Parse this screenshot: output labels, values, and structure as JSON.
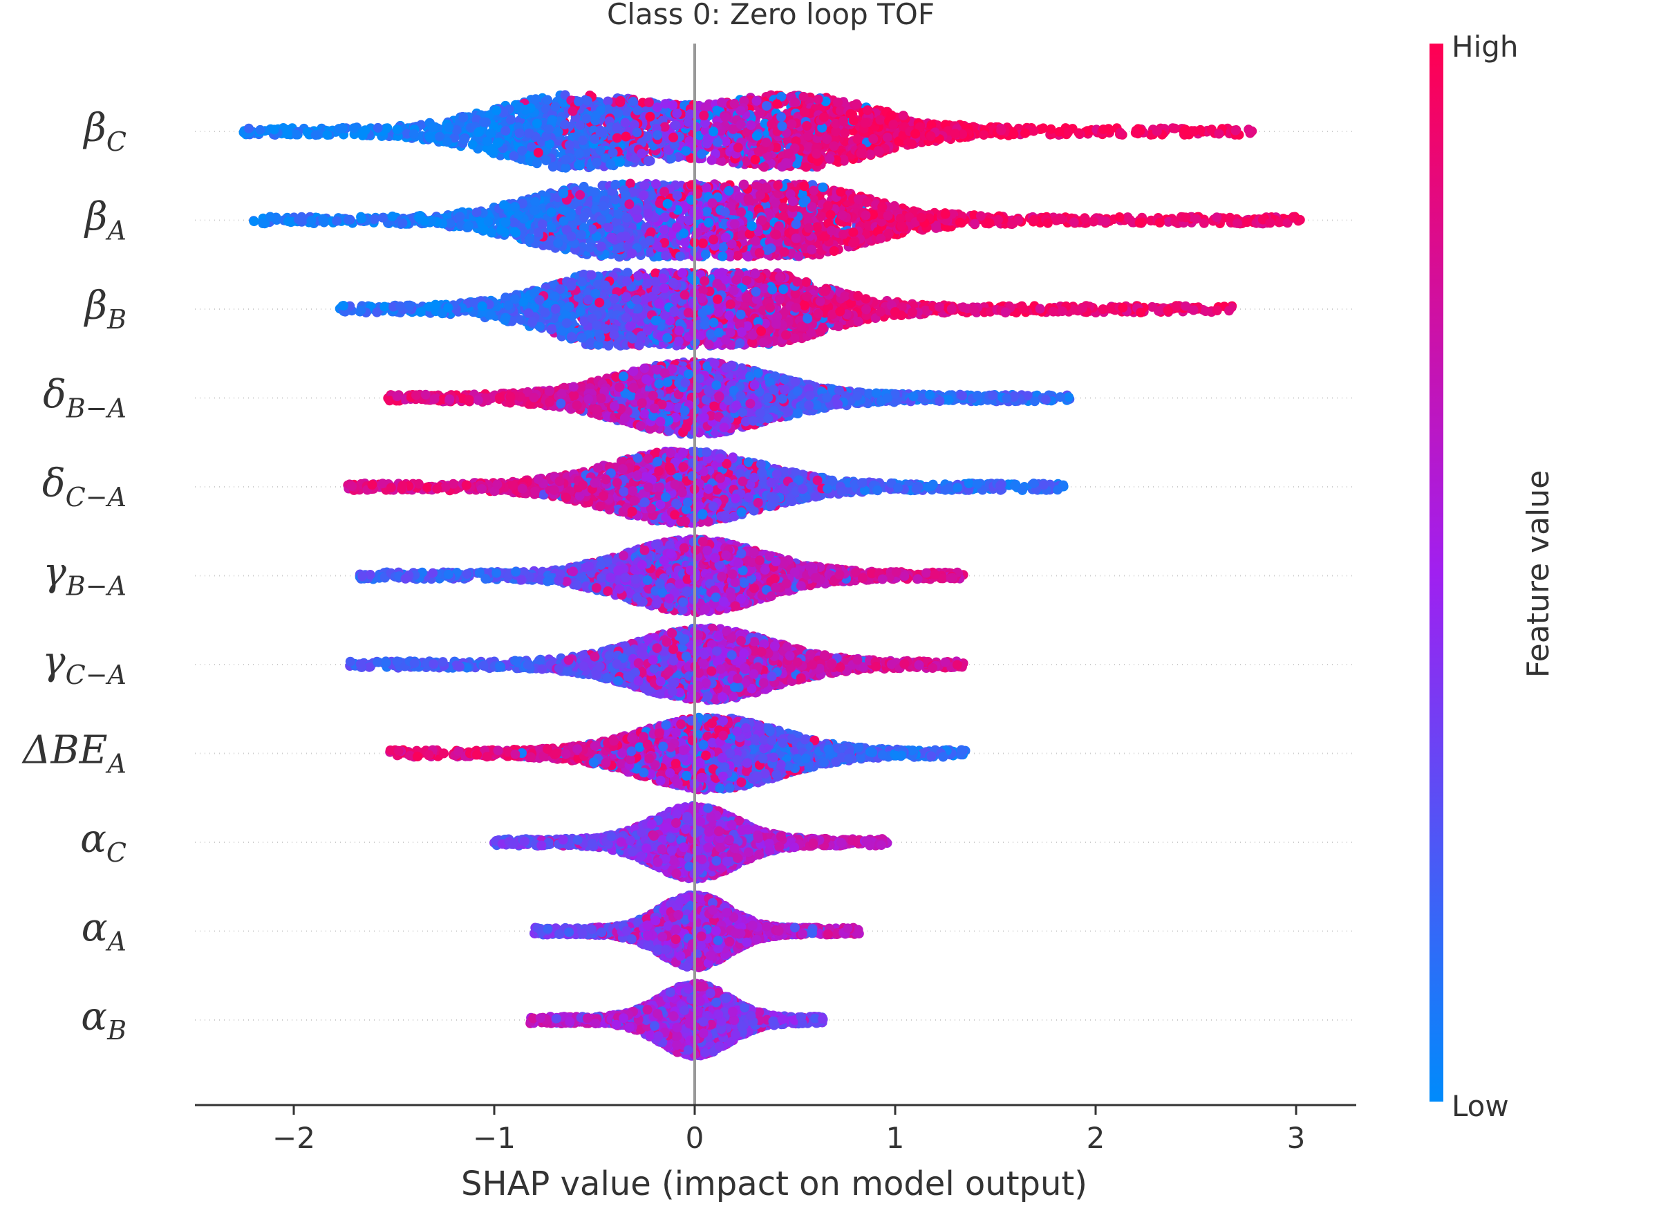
{
  "chart_data": {
    "type": "scatter",
    "subtype": "shap-beeswarm",
    "title": "Class 0: Zero loop TOF",
    "xlabel": "SHAP value (impact on model output)",
    "xlim": [
      -2.5,
      3.3
    ],
    "xticks": [
      -2,
      -1,
      0,
      1,
      2,
      3
    ],
    "xtick_labels": [
      "−2",
      "−1",
      "0",
      "1",
      "2",
      "3"
    ],
    "colorbar": {
      "label": "Feature value",
      "high_label": "High",
      "low_label": "Low",
      "high_color": "#ff0052",
      "mid_color": "#a020f0",
      "low_color": "#008bfb"
    },
    "features": [
      {
        "label": {
          "base": "β",
          "sub": "C"
        },
        "min": -2.25,
        "max": 2.78,
        "spread": 0.42,
        "peaks": [
          -0.6,
          0.5
        ],
        "low_side": "left",
        "strength": 0.9
      },
      {
        "label": {
          "base": "β",
          "sub": "A"
        },
        "min": -2.2,
        "max": 3.02,
        "spread": 0.42,
        "peaks": [
          -0.4,
          0.45
        ],
        "low_side": "left",
        "strength": 0.85
      },
      {
        "label": {
          "base": "β",
          "sub": "B"
        },
        "min": -1.77,
        "max": 2.68,
        "spread": 0.42,
        "peaks": [
          -0.3,
          0.2
        ],
        "low_side": "left",
        "strength": 0.8
      },
      {
        "label": {
          "base": "δ",
          "sub": "B−A"
        },
        "min": -1.53,
        "max": 1.87,
        "spread": 0.4,
        "peaks": [
          0.0
        ],
        "low_side": "right",
        "strength": 0.7
      },
      {
        "label": {
          "base": "δ",
          "sub": "C−A"
        },
        "min": -1.73,
        "max": 1.84,
        "spread": 0.4,
        "peaks": [
          -0.05
        ],
        "low_side": "right",
        "strength": 0.7
      },
      {
        "label": {
          "base": "γ",
          "sub": "B−A"
        },
        "min": -1.67,
        "max": 1.34,
        "spread": 0.36,
        "peaks": [
          0.0
        ],
        "low_side": "left",
        "strength": 0.6
      },
      {
        "label": {
          "base": "γ",
          "sub": "C−A"
        },
        "min": -1.72,
        "max": 1.34,
        "spread": 0.36,
        "peaks": [
          0.05
        ],
        "low_side": "left",
        "strength": 0.6
      },
      {
        "label": {
          "base": "ΔBE",
          "sub": "A"
        },
        "min": -1.52,
        "max": 1.35,
        "spread": 0.36,
        "peaks": [
          0.08
        ],
        "low_side": "right",
        "strength": 0.75
      },
      {
        "label": {
          "base": "α",
          "sub": "C"
        },
        "min": -1.0,
        "max": 0.96,
        "spread": 0.22,
        "peaks": [
          0.0
        ],
        "low_side": "left",
        "strength": 0.4
      },
      {
        "label": {
          "base": "α",
          "sub": "A"
        },
        "min": -0.8,
        "max": 0.82,
        "spread": 0.18,
        "peaks": [
          0.0
        ],
        "low_side": "left",
        "strength": 0.45
      },
      {
        "label": {
          "base": "α",
          "sub": "B"
        },
        "min": -0.82,
        "max": 0.64,
        "spread": 0.18,
        "peaks": [
          0.0
        ],
        "low_side": "right",
        "strength": 0.4
      }
    ]
  }
}
